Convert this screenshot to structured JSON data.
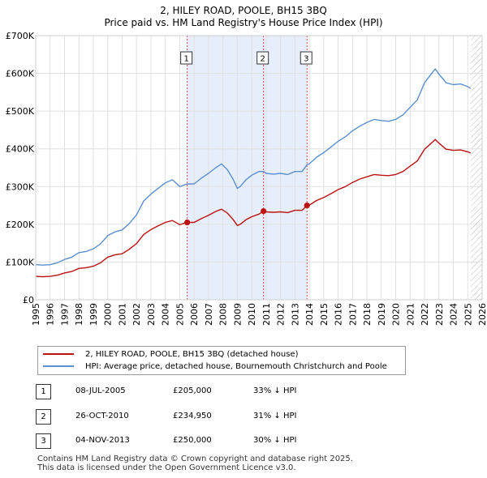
{
  "title_line1": "2, HILEY ROAD, POOLE, BH15 3BQ",
  "title_line2": "Price paid vs. HM Land Registry's House Price Index (HPI)",
  "colors": {
    "hpi": "#5b8fcf",
    "price": "#bb1111",
    "shade": "#e6eefc",
    "vline": "#dd4444",
    "grid": "#e0e0e0"
  },
  "chart_data": {
    "type": "line",
    "title": "Price paid vs. HM Land Registry's House Price Index (HPI)",
    "xlabel": "",
    "ylabel": "",
    "xlim": [
      1995,
      2026
    ],
    "ylim": [
      0,
      700000
    ],
    "x_ticks": [
      "1995",
      "1996",
      "1997",
      "1998",
      "1999",
      "2000",
      "2001",
      "2002",
      "2003",
      "2004",
      "2005",
      "2006",
      "2007",
      "2008",
      "2009",
      "2010",
      "2011",
      "2012",
      "2013",
      "2014",
      "2015",
      "2016",
      "2017",
      "2018",
      "2019",
      "2020",
      "2021",
      "2022",
      "2023",
      "2024",
      "2025",
      "2026"
    ],
    "y_ticks": [
      {
        "value": 0,
        "label": "£0"
      },
      {
        "value": 100000,
        "label": "£100K"
      },
      {
        "value": 200000,
        "label": "£200K"
      },
      {
        "value": 300000,
        "label": "£300K"
      },
      {
        "value": 400000,
        "label": "£400K"
      },
      {
        "value": 500000,
        "label": "£500K"
      },
      {
        "value": 600000,
        "label": "£600K"
      },
      {
        "value": 700000,
        "label": "£700K"
      }
    ],
    "shaded_spans": [
      [
        2005.52,
        2013.84
      ]
    ],
    "forecast_from": 2025.2,
    "series": [
      {
        "name": "HPI: Average price, detached house, Bournemouth Christchurch and Poole",
        "key": "hpi",
        "x": [
          1995.0,
          1995.5,
          1996.0,
          1996.5,
          1997.0,
          1997.5,
          1998.0,
          1998.5,
          1999.0,
          1999.5,
          2000.0,
          2000.5,
          2001.0,
          2001.5,
          2002.0,
          2002.5,
          2003.0,
          2003.5,
          2004.0,
          2004.5,
          2005.0,
          2005.52,
          2006.0,
          2006.5,
          2007.0,
          2007.5,
          2007.9,
          2008.3,
          2008.7,
          2009.0,
          2009.2,
          2009.6,
          2010.0,
          2010.5,
          2010.82,
          2011.0,
          2011.5,
          2012.0,
          2012.5,
          2013.0,
          2013.5,
          2013.84,
          2014.0,
          2014.5,
          2015.0,
          2015.5,
          2016.0,
          2016.5,
          2017.0,
          2017.5,
          2018.0,
          2018.5,
          2019.0,
          2019.5,
          2020.0,
          2020.5,
          2021.0,
          2021.5,
          2022.0,
          2022.5,
          2022.75,
          2023.0,
          2023.5,
          2024.0,
          2024.5,
          2025.0,
          2025.2
        ],
        "y": [
          93000,
          92000,
          93000,
          98000,
          107000,
          113000,
          125000,
          128000,
          135000,
          148000,
          170000,
          180000,
          185000,
          202000,
          225000,
          262000,
          280000,
          295000,
          310000,
          318000,
          300000,
          307000,
          307000,
          322000,
          335000,
          350000,
          360000,
          345000,
          320000,
          295000,
          300000,
          318000,
          330000,
          340000,
          340000,
          335000,
          333000,
          335000,
          332000,
          340000,
          340000,
          358000,
          360000,
          378000,
          390000,
          405000,
          420000,
          432000,
          448000,
          460000,
          470000,
          478000,
          475000,
          473000,
          478000,
          490000,
          510000,
          530000,
          575000,
          600000,
          612000,
          598000,
          575000,
          570000,
          572000,
          565000,
          560000
        ]
      },
      {
        "name": "2, HILEY ROAD, POOLE, BH15 3BQ (detached house)",
        "key": "price",
        "x": [
          1995.0,
          1995.5,
          1996.0,
          1996.5,
          1997.0,
          1997.5,
          1998.0,
          1998.5,
          1999.0,
          1999.5,
          2000.0,
          2000.5,
          2001.0,
          2001.5,
          2002.0,
          2002.5,
          2003.0,
          2003.5,
          2004.0,
          2004.5,
          2005.0,
          2005.52,
          2006.0,
          2006.5,
          2007.0,
          2007.5,
          2007.9,
          2008.3,
          2008.7,
          2009.0,
          2009.2,
          2009.6,
          2010.0,
          2010.5,
          2010.82,
          2011.0,
          2011.5,
          2012.0,
          2012.5,
          2013.0,
          2013.5,
          2013.84,
          2014.0,
          2014.5,
          2015.0,
          2015.5,
          2016.0,
          2016.5,
          2017.0,
          2017.5,
          2018.0,
          2018.5,
          2019.0,
          2019.5,
          2020.0,
          2020.5,
          2021.0,
          2021.5,
          2022.0,
          2022.5,
          2022.75,
          2023.0,
          2023.5,
          2024.0,
          2024.5,
          2025.0,
          2025.2
        ],
        "y": [
          62000,
          61000,
          62000,
          65000,
          71000,
          75000,
          83000,
          85000,
          89000,
          98000,
          113000,
          119000,
          122000,
          134000,
          149000,
          173000,
          186000,
          196000,
          205000,
          210000,
          199000,
          205000,
          205000,
          215000,
          224000,
          234000,
          240000,
          230000,
          213000,
          197000,
          200000,
          212000,
          220000,
          227000,
          234950,
          233000,
          232000,
          233000,
          231000,
          237000,
          237000,
          250000,
          251000,
          263000,
          271000,
          281000,
          292000,
          300000,
          311000,
          320000,
          326000,
          332000,
          330000,
          329000,
          332000,
          340000,
          354000,
          368000,
          399000,
          416000,
          425000,
          415000,
          399000,
          396000,
          397000,
          392000,
          389000
        ]
      }
    ],
    "legend": [
      "2, HILEY ROAD, POOLE, BH15 3BQ (detached house)",
      "HPI: Average price, detached house, Bournemouth Christchurch and Poole"
    ],
    "transactions": [
      {
        "num": "1",
        "x": 2005.52,
        "y": 205000
      },
      {
        "num": "2",
        "x": 2010.82,
        "y": 234950
      },
      {
        "num": "3",
        "x": 2013.84,
        "y": 250000
      }
    ]
  },
  "transactions_table": [
    {
      "num": "1",
      "date": "08-JUL-2005",
      "price": "£205,000",
      "hpi": "33% ↓ HPI"
    },
    {
      "num": "2",
      "date": "26-OCT-2010",
      "price": "£234,950",
      "hpi": "31% ↓ HPI"
    },
    {
      "num": "3",
      "date": "04-NOV-2013",
      "price": "£250,000",
      "hpi": "30% ↓ HPI"
    }
  ],
  "footer_line1": "Contains HM Land Registry data © Crown copyright and database right 2025.",
  "footer_line2": "This data is licensed under the Open Government Licence v3.0."
}
